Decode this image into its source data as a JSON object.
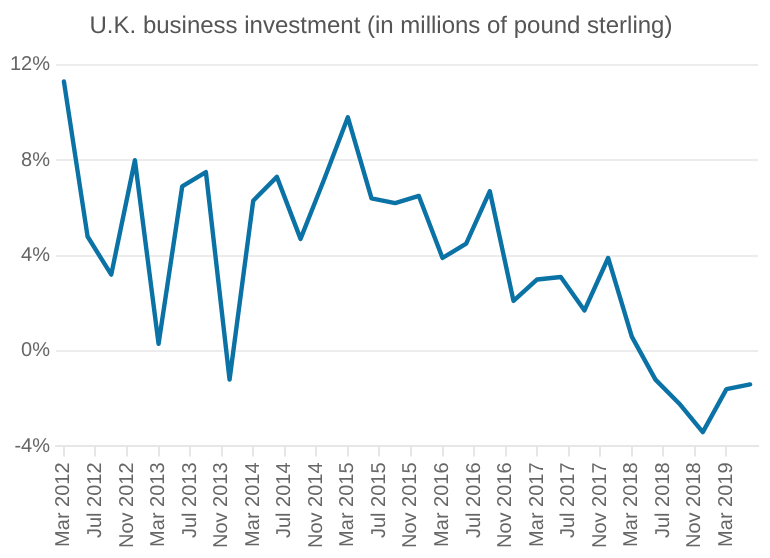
{
  "chart_data": {
    "type": "line",
    "title": "U.K. business investment (in millions of pound sterling)",
    "x": [
      "2012-03",
      "2012-06",
      "2012-09",
      "2012-12",
      "2013-03",
      "2013-06",
      "2013-09",
      "2013-12",
      "2014-03",
      "2014-06",
      "2014-09",
      "2014-12",
      "2015-03",
      "2015-06",
      "2015-09",
      "2015-12",
      "2016-03",
      "2016-06",
      "2016-09",
      "2016-12",
      "2017-03",
      "2017-06",
      "2017-09",
      "2017-12",
      "2018-03",
      "2018-06",
      "2018-09",
      "2018-12",
      "2019-03",
      "2019-06"
    ],
    "series": [
      {
        "color": "#0b72a6",
        "values": [
          11.3,
          4.8,
          3.2,
          8.0,
          0.3,
          6.9,
          7.5,
          -1.2,
          6.3,
          7.3,
          4.7,
          7.2,
          9.8,
          6.4,
          6.2,
          6.5,
          3.9,
          4.5,
          6.7,
          2.1,
          3.0,
          3.1,
          1.7,
          3.9,
          0.6,
          -1.2,
          -2.2,
          -3.4,
          -1.6,
          -1.4
        ]
      }
    ],
    "xlim": [
      "2012-02",
      "2019-07"
    ],
    "xticks": [
      {
        "value": "2012-03",
        "label": "Mar 2012"
      },
      {
        "value": "2012-07",
        "label": "Jul 2012"
      },
      {
        "value": "2012-11",
        "label": "Nov 2012"
      },
      {
        "value": "2013-03",
        "label": "Mar 2013"
      },
      {
        "value": "2013-07",
        "label": "Jul 2013"
      },
      {
        "value": "2013-11",
        "label": "Nov 2013"
      },
      {
        "value": "2014-03",
        "label": "Mar 2014"
      },
      {
        "value": "2014-07",
        "label": "Jul 2014"
      },
      {
        "value": "2014-11",
        "label": "Nov 2014"
      },
      {
        "value": "2015-03",
        "label": "Mar 2015"
      },
      {
        "value": "2015-07",
        "label": "Jul 2015"
      },
      {
        "value": "2015-11",
        "label": "Nov 2015"
      },
      {
        "value": "2016-03",
        "label": "Mar 2016"
      },
      {
        "value": "2016-07",
        "label": "Jul 2016"
      },
      {
        "value": "2016-11",
        "label": "Nov 2016"
      },
      {
        "value": "2017-03",
        "label": "Mar 2017"
      },
      {
        "value": "2017-07",
        "label": "Jul 2017"
      },
      {
        "value": "2017-11",
        "label": "Nov 2017"
      },
      {
        "value": "2018-03",
        "label": "Mar 2018"
      },
      {
        "value": "2018-07",
        "label": "Jul 2018"
      },
      {
        "value": "2018-11",
        "label": "Nov 2018"
      },
      {
        "value": "2019-03",
        "label": "Mar 2019"
      }
    ],
    "ylim": [
      -4,
      12
    ],
    "yticks": [
      {
        "value": -4,
        "label": "-4%"
      },
      {
        "value": 0,
        "label": "0%"
      },
      {
        "value": 4,
        "label": "4%"
      },
      {
        "value": 8,
        "label": "8%"
      },
      {
        "value": 12,
        "label": "12%"
      }
    ],
    "grid": "y",
    "legend": false,
    "marker": "none",
    "line_style": "solid"
  }
}
